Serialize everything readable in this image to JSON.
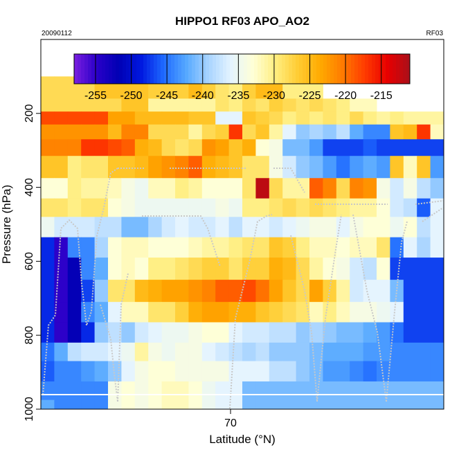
{
  "chart_data": {
    "type": "heatmap",
    "title": "HIPPO1 RF03 APO_AO2",
    "subtitle_left": "20090112",
    "subtitle_right": "RF03",
    "xlabel": "Latitude (°N)",
    "ylabel": "Pressure (hPa)",
    "x_ticks": [
      70
    ],
    "y_ticks": [
      200,
      400,
      600,
      800,
      1000
    ],
    "ylim": [
      1000,
      0
    ],
    "y_reversed": true,
    "colorbar": {
      "range": [
        -258,
        -211
      ],
      "ticks": [
        -255,
        -250,
        -245,
        -240,
        -235,
        -230,
        -225,
        -220,
        -215
      ],
      "tick_labels": [
        "-255",
        "-250",
        "-245",
        "-240",
        "-235",
        "-230",
        "-225",
        "-220",
        "-215"
      ],
      "colors": [
        "#7a1ee0",
        "#2a00c8",
        "#0000b4",
        "#0018e0",
        "#1f6aff",
        "#55a8ff",
        "#a8d4ff",
        "#e4f4ff",
        "#ffffd6",
        "#ffee80",
        "#ffcc33",
        "#ffaa00",
        "#ff7a00",
        "#ff3a00",
        "#e80000",
        "#a8101a"
      ]
    },
    "legend_position": "top",
    "band_pressures": [
      100,
      160,
      195,
      230,
      270,
      315,
      375,
      430,
      480,
      535,
      590,
      650,
      710,
      765,
      820,
      870,
      925,
      975,
      1000
    ],
    "heat_bands": [
      {
        "cols": 21,
        "values": [
          -228,
          -228,
          -228,
          -228,
          -226,
          -226,
          -226,
          -226,
          -227,
          -227,
          -227,
          -225,
          -227,
          -229,
          -230,
          -227,
          -225,
          -225,
          -230,
          -230,
          -230
        ]
      },
      {
        "cols": 25,
        "values": [
          -228,
          -228,
          -228,
          -228,
          -228,
          -228,
          -226,
          -226,
          -231,
          -231,
          -231,
          -231,
          -231,
          -229,
          -230,
          -228,
          -229,
          -227,
          -228,
          -229,
          -228,
          -229,
          -230,
          -232,
          -232
        ]
      },
      {
        "cols": 30,
        "values": [
          -218,
          -218,
          -218,
          -218,
          -218,
          -223,
          -223,
          -225,
          -225,
          -225,
          -225,
          -226,
          -226,
          -236,
          -236,
          -226,
          -227,
          -228,
          -230,
          -229,
          -230,
          -229,
          -230,
          -228,
          -230,
          -231,
          -230,
          -231,
          -231,
          -231
        ]
      },
      {
        "cols": 30,
        "values": [
          -222,
          -222,
          -222,
          -222,
          -222,
          -225,
          -221,
          -221,
          -228,
          -228,
          -228,
          -231,
          -228,
          -227,
          -217,
          -228,
          -226,
          -231,
          -236,
          -240,
          -239,
          -240,
          -238,
          -242,
          -244,
          -244,
          -226,
          -225,
          -217,
          -232
        ]
      },
      {
        "cols": 30,
        "values": [
          -221,
          -221,
          -221,
          -217,
          -217,
          -218,
          -219,
          -224,
          -225,
          -228,
          -229,
          -228,
          -222,
          -223,
          -226,
          -224,
          -233,
          -234,
          -241,
          -241,
          -243,
          -247,
          -247,
          -247,
          -246,
          -247,
          -247,
          -247,
          -247,
          -247
        ]
      },
      {
        "cols": 30,
        "values": [
          -226,
          -226,
          -230,
          -229,
          -229,
          -226,
          -226,
          -225,
          -223,
          -222,
          -221,
          -219,
          -224,
          -225,
          -226,
          -229,
          -229,
          -234,
          -237,
          -240,
          -241,
          -243,
          -245,
          -243,
          -242,
          -243,
          -226,
          -232,
          -226,
          -243
        ]
      },
      {
        "cols": 30,
        "values": [
          -233,
          -233,
          -230,
          -231,
          -231,
          -232,
          -234,
          -235,
          -232,
          -232,
          -230,
          -231,
          -233,
          -233,
          -233,
          -229,
          -212,
          -228,
          -231,
          -231,
          -219,
          -221,
          -228,
          -221,
          -222,
          -234,
          -237,
          -234,
          -238,
          -240
        ]
      },
      {
        "cols": 30,
        "values": [
          -229,
          -229,
          -230,
          -229,
          -229,
          -233,
          -234,
          -235,
          -235,
          -235,
          -235,
          -235,
          -235,
          -234,
          -235,
          -230,
          -230,
          -229,
          -228,
          -229,
          -228,
          -229,
          -230,
          -231,
          -231,
          -233,
          -237,
          -238,
          -246,
          -236
        ]
      },
      {
        "cols": 30,
        "values": [
          -235,
          -237,
          -237,
          -237,
          -238,
          -238,
          -241,
          -241,
          -239,
          -237,
          -236,
          -237,
          -237,
          -236,
          -238,
          -236,
          -236,
          -237,
          -236,
          -235,
          -234,
          -234,
          -236,
          -234,
          -233,
          -233,
          -235,
          -233,
          -238,
          -236
        ]
      },
      {
        "cols": 30,
        "values": [
          -248,
          -255,
          -244,
          -244,
          -239,
          -233,
          -232,
          -232,
          -233,
          -233,
          -233,
          -232,
          -231,
          -231,
          -230,
          -229,
          -229,
          -226,
          -227,
          -230,
          -232,
          -232,
          -233,
          -232,
          -232,
          -229,
          -245,
          -236,
          -239,
          -236
        ]
      },
      {
        "cols": 30,
        "values": [
          -248,
          -255,
          -252,
          -244,
          -242,
          -233,
          -232,
          -233,
          -230,
          -230,
          -229,
          -228,
          -227,
          -227,
          -229,
          -227,
          -227,
          -224,
          -225,
          -228,
          -231,
          -233,
          -234,
          -237,
          -238,
          -233,
          -247,
          -247,
          -247,
          -247
        ]
      },
      {
        "cols": 30,
        "values": [
          -248,
          -255,
          -252,
          -247,
          -240,
          -229,
          -229,
          -225,
          -224,
          -223,
          -223,
          -222,
          -221,
          -219,
          -219,
          -218,
          -220,
          -223,
          -226,
          -228,
          -223,
          -227,
          -231,
          -237,
          -236,
          -236,
          -241,
          -247,
          -247,
          -247
        ]
      },
      {
        "cols": 30,
        "values": [
          -248,
          -255,
          -252,
          -244,
          -242,
          -236,
          -232,
          -232,
          -229,
          -229,
          -227,
          -224,
          -223,
          -223,
          -224,
          -224,
          -226,
          -227,
          -228,
          -229,
          -232,
          -230,
          -232,
          -234,
          -234,
          -235,
          -236,
          -247,
          -247,
          -247
        ]
      },
      {
        "cols": 30,
        "values": [
          -248,
          -255,
          -252,
          -248,
          -240,
          -238,
          -240,
          -237,
          -236,
          -235,
          -235,
          -234,
          -233,
          -233,
          -236,
          -237,
          -237,
          -238,
          -238,
          -240,
          -239,
          -240,
          -241,
          -241,
          -242,
          -243,
          -245,
          -247,
          -247,
          -247
        ]
      },
      {
        "cols": 30,
        "values": [
          -245,
          -242,
          -238,
          -237,
          -237,
          -236,
          -235,
          -231,
          -234,
          -235,
          -234,
          -234,
          -236,
          -237,
          -238,
          -239,
          -238,
          -240,
          -240,
          -240,
          -241,
          -242,
          -242,
          -242,
          -243,
          -243,
          -244,
          -244,
          -244,
          -244
        ]
      },
      {
        "cols": 30,
        "values": [
          -246,
          -244,
          -244,
          -243,
          -242,
          -240,
          -236,
          -234,
          -233,
          -233,
          -234,
          -234,
          -234,
          -234,
          -236,
          -236,
          -236,
          -238,
          -238,
          -240,
          -241,
          -243,
          -243,
          -244,
          -245,
          -244,
          -244,
          -244,
          -244,
          -244
        ]
      },
      {
        "cols": 30,
        "values": [
          -244,
          -244,
          -244,
          -244,
          -244,
          -234,
          -233,
          -234,
          -233,
          -232,
          -232,
          -233,
          -235,
          -236,
          -236,
          -241,
          -241,
          -241,
          -241,
          -241,
          -241,
          -241,
          -241,
          -241,
          -241,
          -241,
          -241,
          -241,
          -241,
          -241
        ]
      },
      {
        "cols": 30,
        "values": [
          -242,
          -244,
          -244,
          -244,
          -244,
          -234,
          -233,
          -234,
          -233,
          -232,
          -232,
          -233,
          -235,
          -236,
          -236,
          -241,
          -241,
          -241,
          -241,
          -241,
          -241,
          -241,
          -241,
          -241,
          -241,
          -241,
          -241,
          -241,
          -241,
          -241
        ]
      }
    ]
  }
}
